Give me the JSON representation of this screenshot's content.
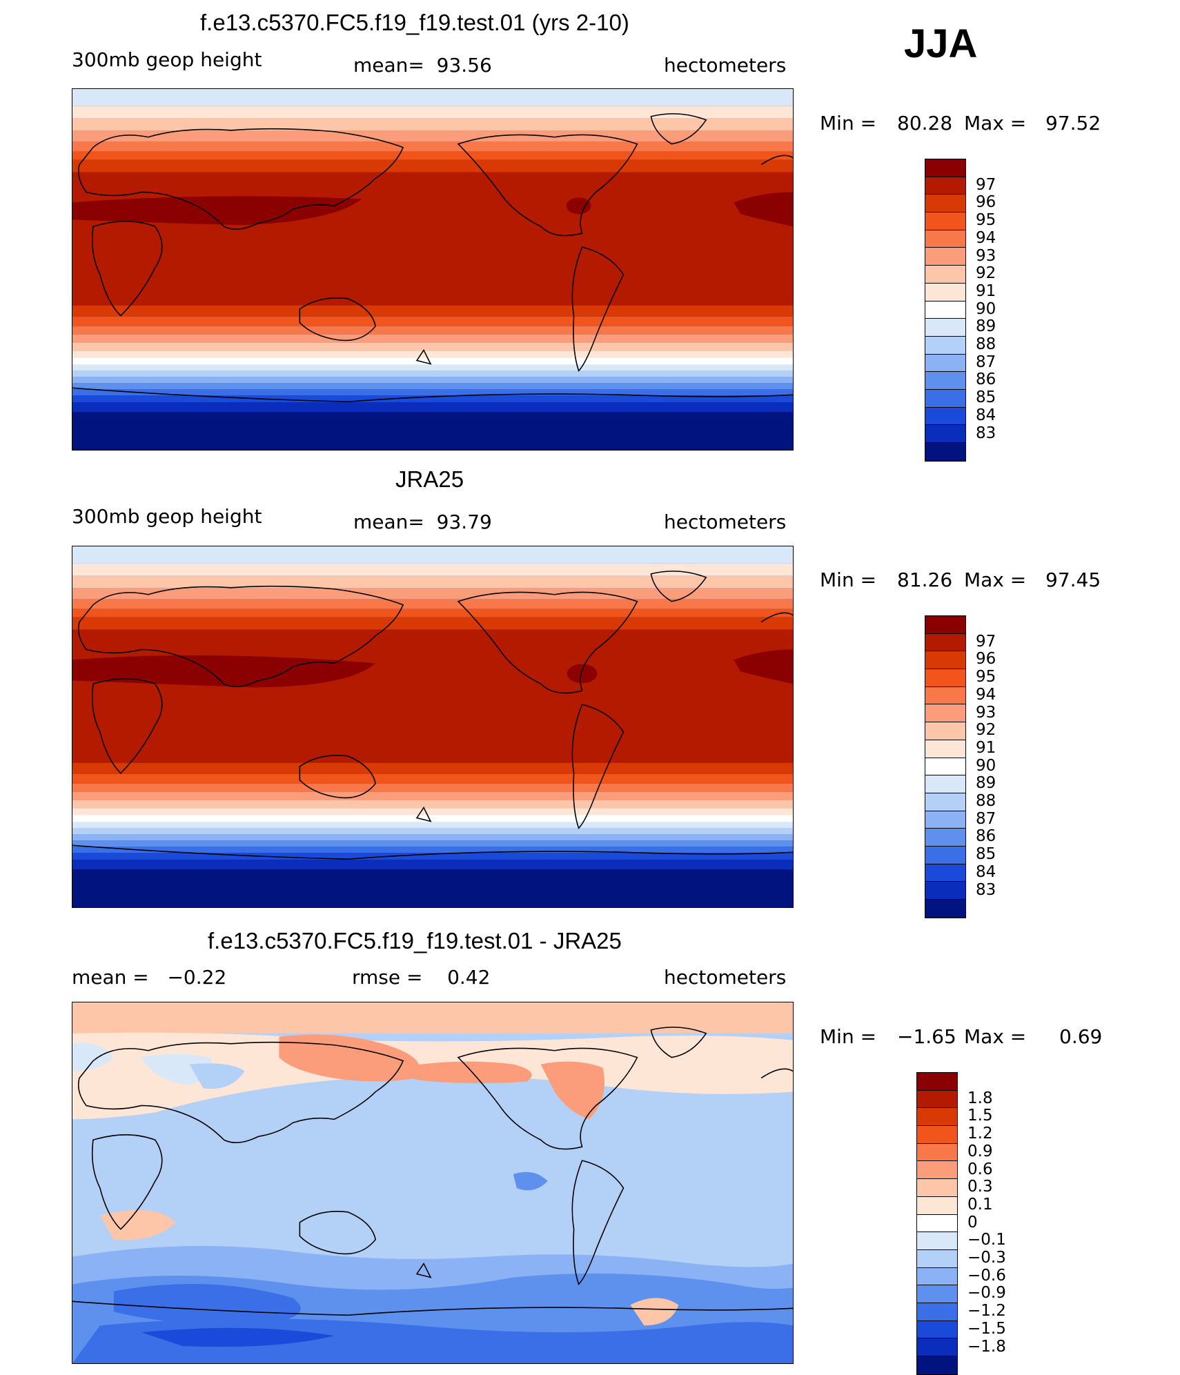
{
  "season": "JJA",
  "panels": [
    {
      "title": "f.e13.c5370.FC5.f19_f19.test.01 (yrs 2-10)",
      "left_label": "300mb geop height",
      "center_label": "mean=  93.56",
      "units": "hectometers",
      "min_label": "Min =",
      "min_value": "80.28",
      "max_label": "Max =",
      "max_value": "97.52",
      "colorbar_labels": [
        "97",
        "96",
        "95",
        "94",
        "93",
        "92",
        "91",
        "90",
        "89",
        "88",
        "87",
        "86",
        "85",
        "84",
        "83"
      ],
      "colorbar_colors": [
        "#8b0000",
        "#b31a00",
        "#d93a05",
        "#f2551c",
        "#f8784a",
        "#fb9d7b",
        "#fdc6a9",
        "#fee6d6",
        "#ffffff",
        "#d8e8f8",
        "#b3d0f7",
        "#8ab2f4",
        "#5e91ee",
        "#3a6fe8",
        "#1a4ad9",
        "#0a2dbb",
        "#00137f"
      ]
    },
    {
      "title": "JRA25",
      "left_label": "300mb geop height",
      "center_label": "mean=  93.79",
      "units": "hectometers",
      "min_label": "Min =",
      "min_value": "81.26",
      "max_label": "Max =",
      "max_value": "97.45",
      "colorbar_labels": [
        "97",
        "96",
        "95",
        "94",
        "93",
        "92",
        "91",
        "90",
        "89",
        "88",
        "87",
        "86",
        "85",
        "84",
        "83"
      ],
      "colorbar_colors": [
        "#8b0000",
        "#b31a00",
        "#d93a05",
        "#f2551c",
        "#f8784a",
        "#fb9d7b",
        "#fdc6a9",
        "#fee6d6",
        "#ffffff",
        "#d8e8f8",
        "#b3d0f7",
        "#8ab2f4",
        "#5e91ee",
        "#3a6fe8",
        "#1a4ad9",
        "#0a2dbb",
        "#00137f"
      ]
    },
    {
      "title": "f.e13.c5370.FC5.f19_f19.test.01 - JRA25",
      "left_label": "mean =   −0.22",
      "center_label": "rmse =    0.42",
      "units": "hectometers",
      "min_label": "Min =",
      "min_value": "−1.65",
      "max_label": "Max =",
      "max_value": "0.69",
      "colorbar_labels": [
        "1.8",
        "1.5",
        "1.2",
        "0.9",
        "0.6",
        "0.3",
        "0.1",
        "0",
        "−0.1",
        "−0.3",
        "−0.6",
        "−0.9",
        "−1.2",
        "−1.5",
        "−1.8"
      ],
      "colorbar_colors": [
        "#8b0000",
        "#b31a00",
        "#d93a05",
        "#f2551c",
        "#f8784a",
        "#fb9d7b",
        "#fdc6a9",
        "#fee6d6",
        "#ffffff",
        "#d8e8f8",
        "#b3d0f7",
        "#8ab2f4",
        "#5e91ee",
        "#3a6fe8",
        "#1a4ad9",
        "#0a2dbb",
        "#00137f"
      ]
    }
  ]
}
